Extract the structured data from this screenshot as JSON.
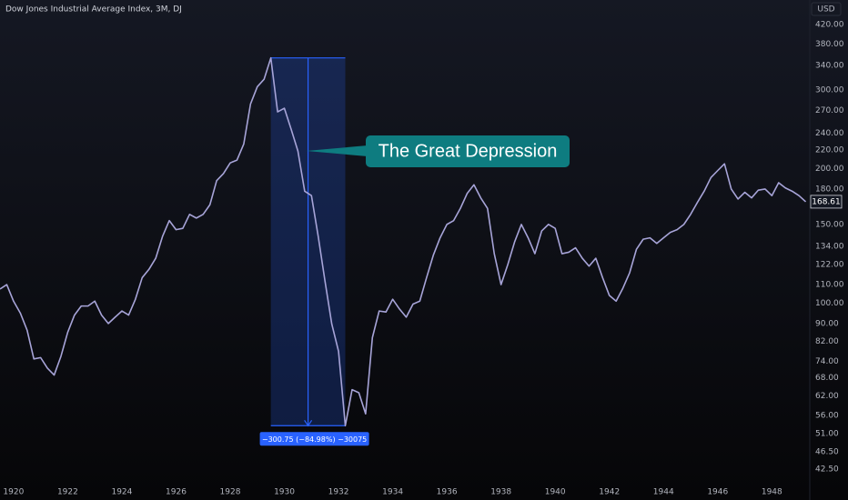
{
  "chart_data": {
    "type": "line",
    "title": "Dow Jones Industrial Average Index, 3M, DJ",
    "currency": "USD",
    "log_scale": true,
    "grid": false,
    "color": "#a7a4d8",
    "callout": "The Great Depression",
    "measure_label": "−300.75 (−84.98%) −30075",
    "x": [
      1919.5,
      1919.75,
      1920,
      1920.25,
      1920.5,
      1920.75,
      1921,
      1921.25,
      1921.5,
      1921.75,
      1922,
      1922.25,
      1922.5,
      1922.75,
      1923,
      1923.25,
      1923.5,
      1923.75,
      1924,
      1924.25,
      1924.5,
      1924.75,
      1925,
      1925.25,
      1925.5,
      1925.75,
      1926,
      1926.25,
      1926.5,
      1926.75,
      1927,
      1927.25,
      1927.5,
      1927.75,
      1928,
      1928.25,
      1928.5,
      1928.75,
      1929,
      1929.25,
      1929.5,
      1929.75,
      1930,
      1930.25,
      1930.5,
      1930.75,
      1931,
      1931.25,
      1931.5,
      1931.75,
      1932,
      1932.25,
      1932.5,
      1932.75,
      1933,
      1933.25,
      1933.5,
      1933.75,
      1934,
      1934.25,
      1934.5,
      1934.75,
      1935,
      1935.25,
      1935.5,
      1935.75,
      1936,
      1936.25,
      1936.5,
      1936.75,
      1937,
      1937.25,
      1937.5,
      1937.75,
      1938,
      1938.25,
      1938.5,
      1938.75,
      1939,
      1939.25,
      1939.5,
      1939.75,
      1940,
      1940.25,
      1940.5,
      1940.75,
      1941,
      1941.25,
      1941.5,
      1941.75,
      1942,
      1942.25,
      1942.5,
      1942.75,
      1943,
      1943.25,
      1943.5,
      1943.75,
      1944,
      1944.25,
      1944.5,
      1944.75,
      1945,
      1945.25,
      1945.5,
      1945.75,
      1946,
      1946.25,
      1946.5,
      1946.75,
      1947,
      1947.25,
      1947.5,
      1947.75,
      1948,
      1948.25,
      1948.5,
      1948.75,
      1949,
      1949.25
    ],
    "values": [
      107.5,
      110,
      101,
      95,
      87,
      75,
      75.5,
      71.5,
      69,
      76,
      86,
      94,
      98.5,
      98.5,
      101,
      94,
      90,
      93,
      96,
      94,
      102,
      114,
      119,
      126,
      141,
      153,
      146,
      147,
      158,
      155,
      158,
      166,
      188,
      195,
      206,
      209,
      227,
      279,
      305,
      317,
      353.9,
      268,
      273,
      245,
      219,
      178,
      174,
      141,
      112,
      89.8,
      78,
      53.15,
      64,
      63,
      56.5,
      83.7,
      96,
      95.5,
      102,
      97,
      93,
      99.5,
      101,
      114,
      128,
      140,
      150,
      153,
      163,
      176,
      184,
      172,
      163,
      129,
      110,
      122,
      137,
      150,
      140,
      129,
      145,
      150,
      147,
      129,
      130,
      133,
      126,
      121,
      126,
      114,
      104,
      101,
      108,
      117,
      132,
      139,
      140,
      136,
      140,
      144,
      146,
      150,
      158,
      168,
      178,
      191,
      198,
      205,
      180,
      171,
      177,
      172,
      179,
      180,
      174,
      186,
      181,
      178,
      174,
      168.61
    ],
    "xlim": [
      1919.5,
      1949.4
    ],
    "ylim": [
      39.8,
      477
    ],
    "xticks": [
      1920,
      1922,
      1924,
      1926,
      1928,
      1930,
      1932,
      1934,
      1936,
      1938,
      1940,
      1942,
      1944,
      1946,
      1948
    ],
    "yticks": [
      {
        "value": 420,
        "label": "420.00"
      },
      {
        "value": 380,
        "label": "380.00"
      },
      {
        "value": 340,
        "label": "340.00"
      },
      {
        "value": 300,
        "label": "300.00"
      },
      {
        "value": 270,
        "label": "270.00"
      },
      {
        "value": 240,
        "label": "240.00"
      },
      {
        "value": 220,
        "label": "220.00"
      },
      {
        "value": 200,
        "label": "200.00"
      },
      {
        "value": 180,
        "label": "180.00"
      },
      {
        "value": 150,
        "label": "150.00"
      },
      {
        "value": 134,
        "label": "134.00"
      },
      {
        "value": 122,
        "label": "122.00"
      },
      {
        "value": 110,
        "label": "110.00"
      },
      {
        "value": 100,
        "label": "100.00"
      },
      {
        "value": 90,
        "label": "90.00"
      },
      {
        "value": 82,
        "label": "82.00"
      },
      {
        "value": 74,
        "label": "74.00"
      },
      {
        "value": 68,
        "label": "68.00"
      },
      {
        "value": 62,
        "label": "62.00"
      },
      {
        "value": 56,
        "label": "56.00"
      },
      {
        "value": 51,
        "label": "51.00"
      },
      {
        "value": 46.5,
        "label": "46.50"
      },
      {
        "value": 42.5,
        "label": "42.50"
      }
    ]
  }
}
